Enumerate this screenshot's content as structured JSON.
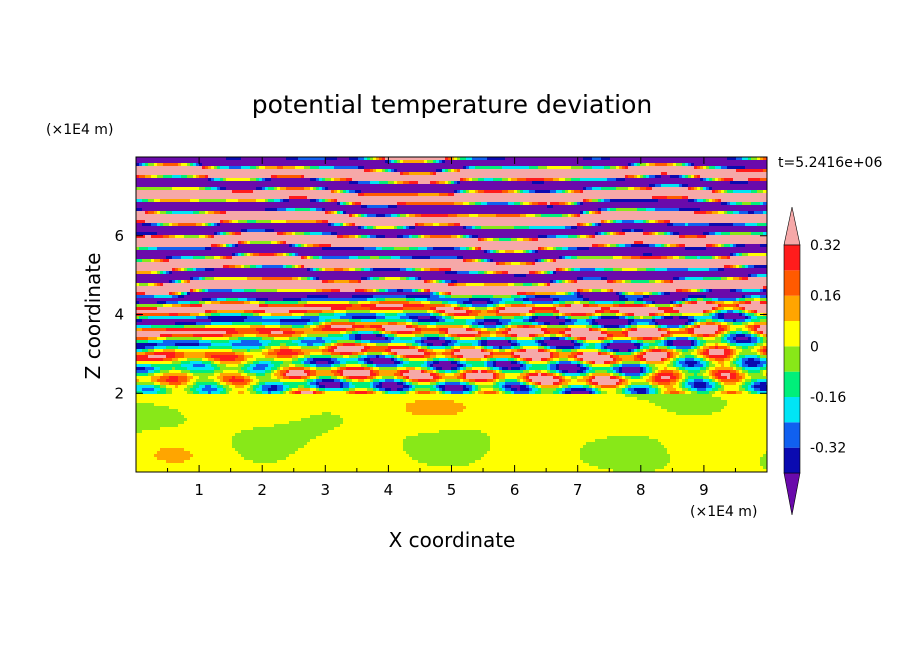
{
  "chart_data": {
    "type": "heatmap",
    "title": "potential temperature deviation",
    "xlabel": "X coordinate",
    "ylabel": "Z coordinate",
    "x_unit": "(×1E4 m)",
    "y_unit": "(×1E4 m)",
    "time_label": "t=5.2416e+06",
    "xlim": [
      0,
      10
    ],
    "ylim": [
      0,
      8
    ],
    "x_ticks": [
      "1",
      "2",
      "3",
      "4",
      "5",
      "6",
      "7",
      "8",
      "9"
    ],
    "y_ticks": [
      "2",
      "4",
      "6"
    ],
    "colorbar": {
      "levels": [
        -0.4,
        -0.32,
        -0.24,
        -0.16,
        -0.08,
        0,
        0.08,
        0.16,
        0.24,
        0.32,
        0.4
      ],
      "colors": [
        "#6a0aab",
        "#0a0ab0",
        "#1060f0",
        "#00e5f5",
        "#00ef7a",
        "#88e818",
        "#ffff00",
        "#ffa500",
        "#ff5a00",
        "#ff1c1c",
        "#f6a8a8"
      ],
      "labels": [
        "0.32",
        "0.16",
        "0",
        "-0.16",
        "-0.32"
      ],
      "extend": "both"
    },
    "layers": [
      {
        "z_range": [
          0,
          2
        ],
        "dominant_values": [
          0,
          0.08
        ]
      },
      {
        "z_range": [
          2,
          4.5
        ],
        "dominant_values": [
          -0.4,
          0.4,
          0,
          0.16,
          -0.16
        ]
      },
      {
        "z_range": [
          4.5,
          8
        ],
        "dominant_values": [
          -0.4,
          0.4
        ]
      }
    ]
  }
}
